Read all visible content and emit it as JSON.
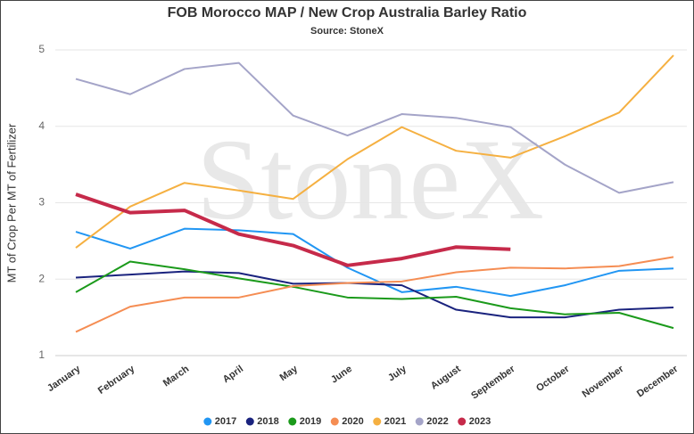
{
  "chart_data": {
    "type": "line",
    "title": "FOB Morocco MAP / New Crop Australia Barley Ratio",
    "subtitle": "Source: StoneX",
    "watermark": "StoneX",
    "ylabel": "MT of Crop Per MT of Fertilizer",
    "categories": [
      "January",
      "February",
      "March",
      "April",
      "May",
      "June",
      "July",
      "August",
      "September",
      "October",
      "November",
      "December"
    ],
    "series": [
      {
        "name": "2017",
        "color": "#2196f3",
        "line_width": 2,
        "values": [
          2.62,
          2.4,
          2.66,
          2.64,
          2.59,
          2.15,
          1.83,
          1.9,
          1.78,
          1.92,
          2.11,
          2.14
        ]
      },
      {
        "name": "2018",
        "color": "#1a237e",
        "line_width": 2,
        "values": [
          2.02,
          2.06,
          2.1,
          2.08,
          1.94,
          1.95,
          1.92,
          1.6,
          1.5,
          1.5,
          1.6,
          1.63
        ]
      },
      {
        "name": "2019",
        "color": "#1b9a1b",
        "line_width": 2,
        "values": [
          1.83,
          2.23,
          2.13,
          2.01,
          1.9,
          1.76,
          1.74,
          1.77,
          1.62,
          1.54,
          1.56,
          1.36
        ]
      },
      {
        "name": "2020",
        "color": "#f58d53",
        "line_width": 2,
        "values": [
          1.31,
          1.64,
          1.76,
          1.76,
          1.91,
          1.95,
          1.97,
          2.09,
          2.15,
          2.14,
          2.17,
          2.29
        ]
      },
      {
        "name": "2021",
        "color": "#f5b041",
        "line_width": 2,
        "values": [
          2.41,
          2.95,
          3.26,
          3.16,
          3.05,
          3.57,
          3.99,
          3.68,
          3.59,
          3.87,
          4.18,
          4.93
        ]
      },
      {
        "name": "2022",
        "color": "#a4a4c8",
        "line_width": 2,
        "values": [
          4.62,
          4.42,
          4.75,
          4.83,
          4.14,
          3.88,
          4.16,
          4.11,
          3.99,
          3.5,
          3.13,
          3.27
        ]
      },
      {
        "name": "2023",
        "color": "#c62a4a",
        "line_width": 4,
        "values": [
          3.11,
          2.87,
          2.9,
          2.59,
          2.44,
          2.18,
          2.27,
          2.42,
          2.39,
          null,
          null,
          null
        ]
      }
    ],
    "ylim": [
      1,
      5
    ],
    "yticks": [
      1,
      2,
      3,
      4,
      5
    ],
    "grid": true,
    "legend": "bottom"
  }
}
